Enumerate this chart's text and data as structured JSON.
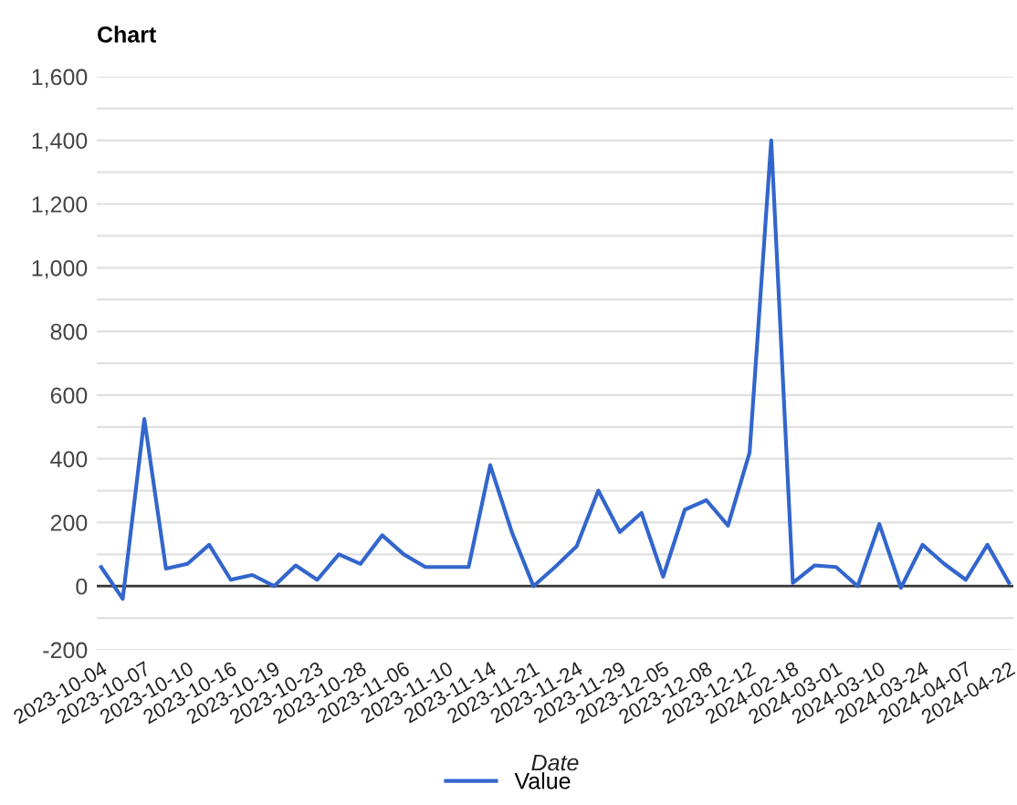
{
  "chart_data": {
    "type": "line",
    "title": "Chart",
    "xlabel": "Date",
    "categories": [
      "2023-10-04",
      null,
      "2023-10-07",
      null,
      "2023-10-10",
      null,
      "2023-10-16",
      null,
      "2023-10-19",
      null,
      "2023-10-23",
      null,
      "2023-10-28",
      null,
      "2023-11-06",
      null,
      "2023-11-10",
      null,
      "2023-11-14",
      null,
      "2023-11-21",
      null,
      "2023-11-24",
      null,
      "2023-11-29",
      null,
      "2023-12-05",
      null,
      "2023-12-08",
      null,
      "2023-12-12",
      null,
      "2024-02-18",
      null,
      "2024-03-01",
      null,
      "2024-03-10",
      null,
      "2024-03-24",
      null,
      "2024-04-07",
      null,
      "2024-04-22"
    ],
    "series": [
      {
        "name": "Value",
        "color": "#3366cc",
        "values": [
          60,
          -40,
          525,
          55,
          70,
          130,
          20,
          35,
          0,
          65,
          20,
          100,
          70,
          160,
          100,
          60,
          60,
          60,
          380,
          170,
          0,
          60,
          125,
          300,
          170,
          230,
          30,
          240,
          270,
          190,
          420,
          1400,
          10,
          65,
          60,
          0,
          195,
          -5,
          130,
          70,
          20,
          130,
          10
        ]
      }
    ],
    "ylim": [
      -200,
      1600
    ],
    "yticks": [
      -200,
      {
        "value": -100,
        "label": null
      },
      0,
      {
        "value": 100,
        "label": null
      },
      200,
      {
        "value": 300,
        "label": null
      },
      400,
      {
        "value": 500,
        "label": null
      },
      600,
      {
        "value": 700,
        "label": null
      },
      800,
      {
        "value": 900,
        "label": null
      },
      {
        "value": 1000,
        "label": "1,000"
      },
      {
        "value": 1100,
        "label": null
      },
      {
        "value": 1200,
        "label": "1,200"
      },
      {
        "value": 1300,
        "label": null
      },
      {
        "value": 1400,
        "label": "1,400"
      },
      {
        "value": 1500,
        "label": null
      },
      {
        "value": 1600,
        "label": "1,600"
      }
    ],
    "grid": "y",
    "legend": "bottom",
    "marker": "none",
    "line_style": "solid",
    "ref_lines": [
      {
        "axis": "y",
        "value": 0,
        "color": "#333333"
      }
    ]
  }
}
